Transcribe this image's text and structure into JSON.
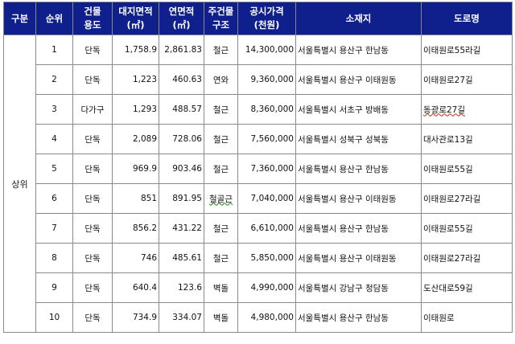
{
  "header": {
    "category": "구분",
    "rank": "순위",
    "use_l1": "건물",
    "use_l2": "용도",
    "land_l1": "대지면적",
    "land_l2": "(㎡)",
    "floor_l1": "연면적",
    "floor_l2": "(㎡)",
    "struct_l1": "주건물",
    "struct_l2": "구조",
    "price_l1": "공시가격",
    "price_l2": "(천원)",
    "address": "소재지",
    "road": "도로명"
  },
  "category_label": "상위",
  "rows": [
    {
      "rank": "1",
      "use": "단독",
      "land": "1,758.9",
      "floor": "2,861.83",
      "struct": "철근",
      "price": "14,300,000",
      "address": "서울특별시 용산구 한남동",
      "road": "이태원로55라길"
    },
    {
      "rank": "2",
      "use": "단독",
      "land": "1,223",
      "floor": "460.63",
      "struct": "연와",
      "price": "9,360,000",
      "address": "서울특별시  용산구 이태원동",
      "road": "이태원로27길"
    },
    {
      "rank": "3",
      "use": "다가구",
      "land": "1,293",
      "floor": "488.57",
      "struct": "철근",
      "price": "8,360,000",
      "address": "서울특별시   서초구 방배동",
      "road": "동광로27길"
    },
    {
      "rank": "4",
      "use": "단독",
      "land": "2,089",
      "floor": "728.06",
      "struct": "철근",
      "price": "7,560,000",
      "address": "서울특별시   성북구 성북동",
      "road": "대사관로13길"
    },
    {
      "rank": "5",
      "use": "단독",
      "land": "969.9",
      "floor": "903.46",
      "struct": "철근",
      "price": "7,360,000",
      "address": "서울특별시  용산구 한남동",
      "road": "이태원로55길"
    },
    {
      "rank": "6",
      "use": "단독",
      "land": "851",
      "floor": "891.95",
      "struct": "철골근",
      "price": "7,040,000",
      "address": "서울특별시  용산구 이태원동",
      "road": "이태원로27라길"
    },
    {
      "rank": "7",
      "use": "단독",
      "land": "856.2",
      "floor": "431.22",
      "struct": "철근",
      "price": "6,610,000",
      "address": "서울특별시   용산구 한남동",
      "road": "이태원로55길"
    },
    {
      "rank": "8",
      "use": "단독",
      "land": "746",
      "floor": "485.61",
      "struct": "철근",
      "price": "5,850,000",
      "address": "서울특별시   용산구 이태원동",
      "road": "이태원로27라길"
    },
    {
      "rank": "9",
      "use": "단독",
      "land": "640.4",
      "floor": "123.6",
      "struct": "벽돌",
      "price": "4,990,000",
      "address": "서울특별시   강남구 청담동",
      "road": "도산대로59길"
    },
    {
      "rank": "10",
      "use": "단독",
      "land": "734.9",
      "floor": "334.07",
      "struct": "벽돌",
      "price": "4,980,000",
      "address": "서울특별시   용산구 한남동",
      "road": "이태원로"
    }
  ]
}
